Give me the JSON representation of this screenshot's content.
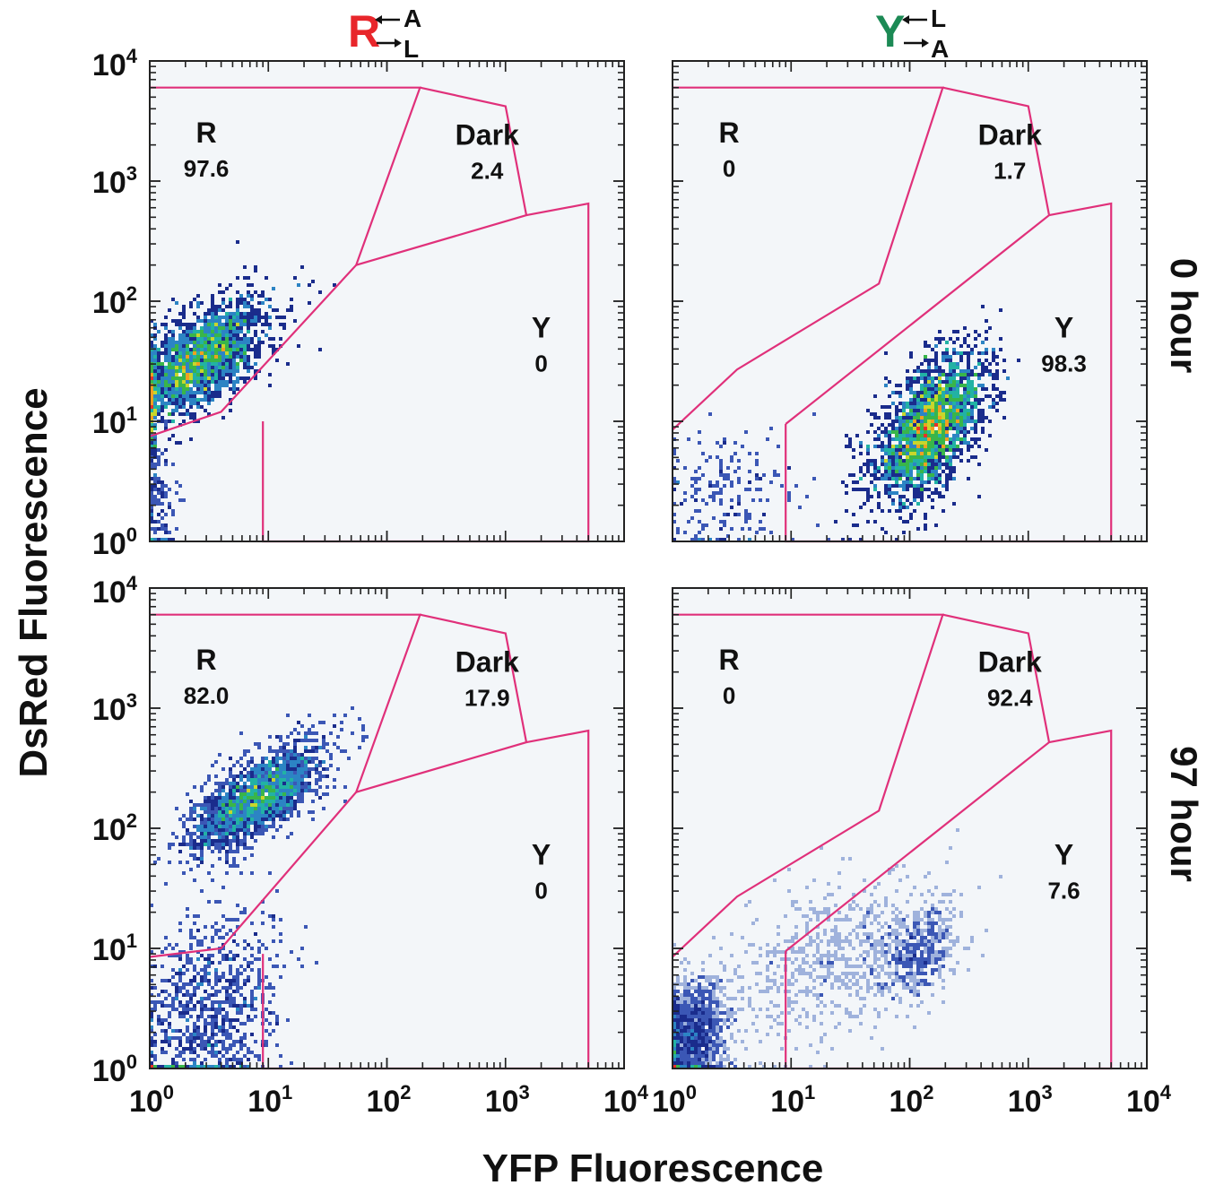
{
  "figure": {
    "ylabel": "DsRed Fluorescence",
    "xlabel": "YFP Fluorescence",
    "columns": [
      {
        "main": "R",
        "main_color": "#e8262b",
        "top": "A",
        "bottom": "L"
      },
      {
        "main": "Y",
        "main_color": "#1c8a55",
        "top": "L",
        "bottom": "A"
      }
    ],
    "rows": [
      "0 hour",
      "97 hour"
    ],
    "tick_base": "10",
    "tick_exponents": [
      "0",
      "1",
      "2",
      "3",
      "4"
    ]
  },
  "chart_data": [
    {
      "type": "scatter",
      "row": "0 hour",
      "column": "R",
      "xlabel": "YFP Fluorescence",
      "ylabel": "DsRed Fluorescence",
      "xscale": "log",
      "yscale": "log",
      "xlim": [
        1,
        10000
      ],
      "ylim": [
        1,
        10000
      ],
      "gates": [
        {
          "name": "R",
          "value": "97.6",
          "vertices": [
            [
              1,
              6000
            ],
            [
              190,
              6000
            ],
            [
              55,
              200
            ],
            [
              4,
              12
            ],
            [
              1,
              7.5
            ]
          ]
        },
        {
          "name": "Dark",
          "value": "2.4",
          "vertices": [
            [
              190,
              6000
            ],
            [
              1000,
              4200
            ],
            [
              1500,
              520
            ],
            [
              55,
              200
            ]
          ]
        },
        {
          "name": "Y",
          "value": "0",
          "vertices": [
            [
              1500,
              520
            ],
            [
              5000,
              650
            ],
            [
              5000,
              1
            ],
            [
              9,
              1
            ],
            [
              9,
              10
            ]
          ]
        }
      ],
      "populations": [
        {
          "center": [
            2.5,
            32
          ],
          "spread": [
            0.3,
            0.26
          ],
          "rho": 0.65,
          "count": 2200
        },
        {
          "center": [
            1.2,
            2.5
          ],
          "spread": [
            0.08,
            0.35
          ],
          "rho": 0,
          "count": 160,
          "density": "low"
        }
      ]
    },
    {
      "type": "scatter",
      "row": "0 hour",
      "column": "Y",
      "xlabel": "YFP Fluorescence",
      "ylabel": "DsRed Fluorescence",
      "xscale": "log",
      "yscale": "log",
      "xlim": [
        1,
        10000
      ],
      "ylim": [
        1,
        10000
      ],
      "gates": [
        {
          "name": "R",
          "value": "0",
          "vertices": [
            [
              1,
              6000
            ],
            [
              190,
              6000
            ],
            [
              55,
              140
            ],
            [
              3.5,
              27
            ],
            [
              1,
              8.5
            ]
          ]
        },
        {
          "name": "Dark",
          "value": "1.7",
          "vertices": [
            [
              190,
              6000
            ],
            [
              1000,
              4200
            ],
            [
              1500,
              520
            ],
            [
              9,
              9.5
            ]
          ]
        },
        {
          "name": "Y",
          "value": "98.3",
          "vertices": [
            [
              1500,
              520
            ],
            [
              5000,
              650
            ],
            [
              5000,
              1
            ],
            [
              9,
              1
            ],
            [
              9,
              9.5
            ]
          ]
        }
      ],
      "populations": [
        {
          "center": [
            150,
            9
          ],
          "spread": [
            0.24,
            0.3
          ],
          "rho": 0.55,
          "count": 2300
        },
        {
          "center": [
            3,
            2.5
          ],
          "spread": [
            0.35,
            0.3
          ],
          "rho": 0,
          "count": 200,
          "density": "low"
        }
      ]
    },
    {
      "type": "scatter",
      "row": "97 hour",
      "column": "R",
      "xlabel": "YFP Fluorescence",
      "ylabel": "DsRed Fluorescence",
      "xscale": "log",
      "yscale": "log",
      "xlim": [
        1,
        10000
      ],
      "ylim": [
        1,
        10000
      ],
      "gates": [
        {
          "name": "R",
          "value": "82.0",
          "vertices": [
            [
              1,
              6000
            ],
            [
              190,
              6000
            ],
            [
              55,
              200
            ],
            [
              4,
              10
            ],
            [
              1,
              8.5
            ]
          ]
        },
        {
          "name": "Dark",
          "value": "17.9",
          "vertices": [
            [
              190,
              6000
            ],
            [
              1000,
              4200
            ],
            [
              1500,
              520
            ],
            [
              55,
              200
            ]
          ]
        },
        {
          "name": "Y",
          "value": "0",
          "vertices": [
            [
              1500,
              520
            ],
            [
              5000,
              650
            ],
            [
              5000,
              1
            ],
            [
              9,
              1
            ],
            [
              9,
              9
            ]
          ]
        }
      ],
      "populations": [
        {
          "center": [
            8,
            180
          ],
          "spread": [
            0.28,
            0.22
          ],
          "rho": 0.7,
          "count": 2000
        },
        {
          "center": [
            3,
            3
          ],
          "spread": [
            0.3,
            0.42
          ],
          "rho": 0.3,
          "count": 900
        }
      ]
    },
    {
      "type": "scatter",
      "row": "97 hour",
      "column": "Y",
      "xlabel": "YFP Fluorescence",
      "ylabel": "DsRed Fluorescence",
      "xscale": "log",
      "yscale": "log",
      "xlim": [
        1,
        10000
      ],
      "ylim": [
        1,
        10000
      ],
      "gates": [
        {
          "name": "R",
          "value": "0",
          "vertices": [
            [
              1,
              6000
            ],
            [
              190,
              6000
            ],
            [
              55,
              140
            ],
            [
              3.5,
              27
            ],
            [
              1,
              8.5
            ]
          ]
        },
        {
          "name": "Dark",
          "value": "92.4",
          "vertices": [
            [
              190,
              6000
            ],
            [
              1000,
              4200
            ],
            [
              1500,
              520
            ],
            [
              9,
              9.5
            ]
          ]
        },
        {
          "name": "Y",
          "value": "7.6",
          "vertices": [
            [
              1500,
              520
            ],
            [
              5000,
              650
            ],
            [
              5000,
              1
            ],
            [
              9,
              1
            ],
            [
              9,
              9.5
            ]
          ]
        }
      ],
      "populations": [
        {
          "center": [
            1.4,
            1.8
          ],
          "spread": [
            0.16,
            0.22
          ],
          "rho": 0.2,
          "count": 1500
        },
        {
          "center": [
            110,
            9
          ],
          "spread": [
            0.18,
            0.2
          ],
          "rho": 0.3,
          "count": 500
        },
        {
          "center": [
            20,
            8
          ],
          "spread": [
            0.45,
            0.35
          ],
          "rho": 0.4,
          "count": 600,
          "density": "low"
        }
      ]
    }
  ],
  "colors": {
    "plot_background": "#f3f6f9",
    "gate_line": "#e0307a",
    "axis": "#222222",
    "density_scale": [
      "#9fb2dc",
      "#3b57b5",
      "#1a2c8c",
      "#2c84c4",
      "#22b2a4",
      "#39b54a",
      "#c8d62c",
      "#f0a020",
      "#e8302a"
    ]
  }
}
